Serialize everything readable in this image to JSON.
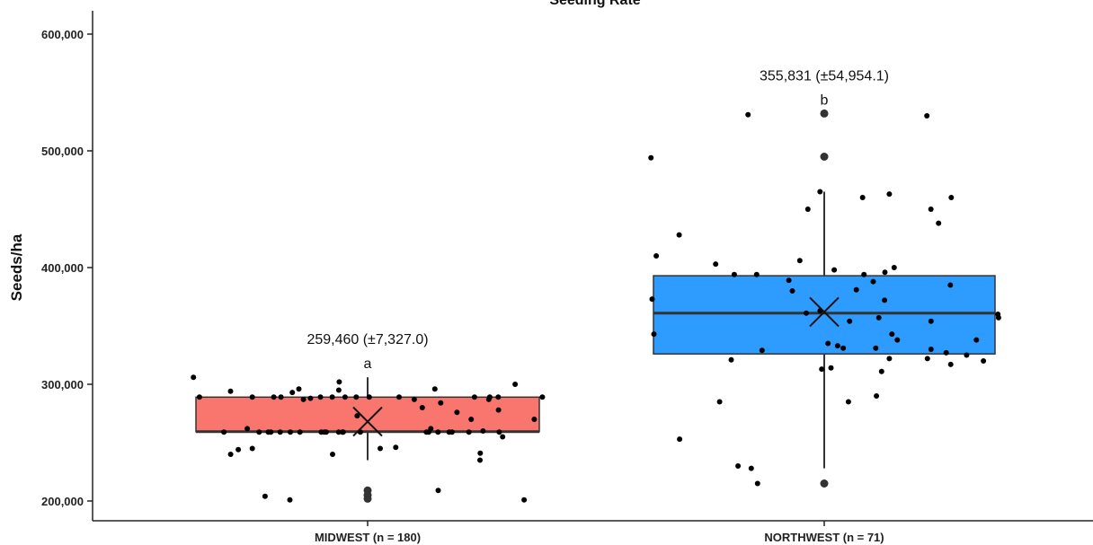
{
  "chart_data": {
    "type": "box",
    "title": "Seeding Rate",
    "xlabel": "",
    "ylabel": "Seeds/ha",
    "ylim": [
      190000,
      615000
    ],
    "yticks": [
      200000,
      300000,
      400000,
      500000,
      600000
    ],
    "ytick_labels": [
      "200,000",
      "300,000",
      "400,000",
      "500,000",
      "600,000"
    ],
    "grid": false,
    "legend": "none",
    "categories": [
      "MIDWEST (n = 180)",
      "NORTHWEST (n = 71)"
    ],
    "groups": [
      {
        "name": "MIDWEST (n = 180)",
        "color": "#F8766D",
        "q1": 259460,
        "median": 259460,
        "q3": 289000,
        "whisker_low": 235000,
        "whisker_high": 306000,
        "mean": 268000,
        "outliers": [
          209000,
          205000,
          202000
        ],
        "annotation": "259,460 (±7,327.0)",
        "letter": "a",
        "points": [
          280000,
          296000,
          287000,
          289000,
          262000,
          259000,
          245000,
          255000,
          284000,
          260000,
          259000,
          288000,
          270000,
          259000,
          246000,
          289000,
          204000,
          259000,
          278000,
          287000,
          240000,
          273000,
          259000,
          289000,
          201000,
          259000,
          300000,
          289000,
          302000,
          259000,
          241000,
          289000,
          262000,
          287000,
          259000,
          289000,
          270000,
          289000,
          276000,
          259000,
          289000,
          259000,
          235000,
          259000,
          245000,
          289000,
          209000,
          294000,
          289000,
          259000,
          296000,
          289000,
          259000,
          289000,
          259000,
          240000,
          295000,
          201000,
          259000,
          289000,
          259000,
          244000,
          259000,
          306000,
          293000,
          259000,
          259000,
          259000,
          289000,
          259000
        ]
      },
      {
        "name": "NORTHWEST (n = 71)",
        "color": "#2E9BFF",
        "q1": 326000,
        "median": 361000,
        "q3": 393000,
        "whisker_low": 228000,
        "whisker_high": 465000,
        "mean": 362000,
        "outliers": [
          532000,
          495000,
          215000
        ],
        "annotation": "355,831 (±54,954.1)",
        "letter": "b",
        "points": [
          333000,
          327000,
          394000,
          400000,
          410000,
          331000,
          361000,
          335000,
          311000,
          228000,
          465000,
          320000,
          285000,
          314000,
          325000,
          460000,
          343000,
          388000,
          290000,
          389000,
          354000,
          463000,
          531000,
          530000,
          360000,
          313000,
          403000,
          285000,
          396000,
          460000,
          354000,
          343000,
          428000,
          338000,
          253000,
          394000,
          450000,
          450000,
          215000,
          317000,
          321000,
          330000,
          380000,
          406000,
          373000,
          329000,
          338000,
          438000,
          322000,
          357000,
          381000,
          385000,
          394000,
          494000,
          230000,
          398000,
          331000,
          322000,
          372000,
          363000,
          357000
        ]
      }
    ]
  }
}
